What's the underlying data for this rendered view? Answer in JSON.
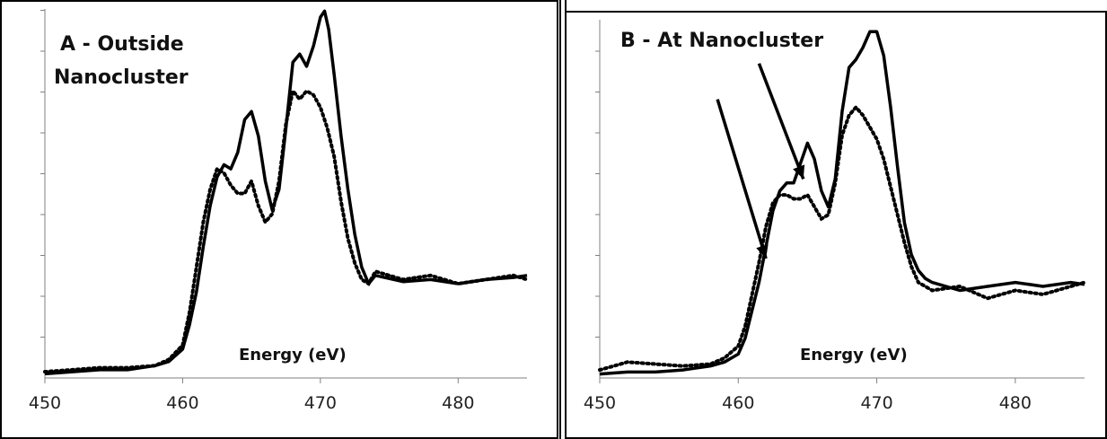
{
  "chart_data": [
    {
      "type": "line",
      "title_lines": [
        "A - Outside",
        "Nanocluster"
      ],
      "xlabel": "Energy (eV)",
      "ylabel": "",
      "xlim": [
        450,
        485
      ],
      "ylim": [
        0,
        9
      ],
      "xticks": [
        450,
        460,
        470,
        480
      ],
      "grid": false,
      "arrows": [],
      "series": [
        {
          "style": "solid",
          "x": [
            450,
            452,
            454,
            456,
            458,
            459,
            460,
            460.5,
            461,
            461.5,
            462,
            462.5,
            463,
            463.5,
            464,
            464.5,
            465,
            465.5,
            466,
            466.5,
            467,
            467.5,
            468,
            468.5,
            469,
            469.5,
            470,
            470.3,
            470.6,
            471,
            471.5,
            472,
            472.5,
            473,
            473.5,
            474,
            476,
            478,
            480,
            482,
            484,
            485
          ],
          "y": [
            0.1,
            0.15,
            0.2,
            0.2,
            0.3,
            0.4,
            0.7,
            1.3,
            2.1,
            3.2,
            4.2,
            4.9,
            5.2,
            5.1,
            5.5,
            6.3,
            6.5,
            5.9,
            4.8,
            4.1,
            4.6,
            6.1,
            7.7,
            7.9,
            7.6,
            8.1,
            8.8,
            8.95,
            8.5,
            7.4,
            5.9,
            4.6,
            3.5,
            2.7,
            2.3,
            2.5,
            2.35,
            2.4,
            2.3,
            2.4,
            2.45,
            2.5
          ]
        },
        {
          "style": "dotted",
          "x": [
            450,
            452,
            454,
            456,
            458,
            459,
            460,
            460.5,
            461,
            461.5,
            462,
            462.5,
            463,
            463.5,
            464,
            464.5,
            465,
            465.5,
            466,
            466.5,
            467,
            467.5,
            468,
            468.5,
            469,
            469.5,
            470,
            470.5,
            471,
            471.5,
            472,
            472.5,
            473,
            473.5,
            474,
            476,
            478,
            480,
            482,
            484,
            485
          ],
          "y": [
            0.15,
            0.2,
            0.25,
            0.25,
            0.3,
            0.45,
            0.8,
            1.6,
            2.7,
            3.8,
            4.6,
            5.1,
            5.0,
            4.7,
            4.5,
            4.5,
            4.8,
            4.2,
            3.8,
            4.0,
            4.8,
            6.2,
            7.0,
            6.8,
            7.0,
            6.9,
            6.6,
            6.1,
            5.4,
            4.3,
            3.4,
            2.8,
            2.4,
            2.3,
            2.6,
            2.4,
            2.5,
            2.3,
            2.4,
            2.5,
            2.4
          ]
        }
      ]
    },
    {
      "type": "line",
      "title_lines": [
        "B - At Nanocluster"
      ],
      "xlabel": "Energy (eV)",
      "ylabel": "",
      "xlim": [
        450,
        485
      ],
      "ylim": [
        0,
        9
      ],
      "xticks": [
        450,
        460,
        470,
        480
      ],
      "grid": false,
      "arrows": [
        {
          "from": [
            458.5,
            7.0
          ],
          "to": [
            462.0,
            3.0
          ]
        },
        {
          "from": [
            461.5,
            7.9
          ],
          "to": [
            464.7,
            5.0
          ]
        }
      ],
      "series": [
        {
          "style": "solid",
          "x": [
            450,
            452,
            454,
            456,
            458,
            459,
            460,
            460.5,
            461,
            461.5,
            462,
            462.5,
            463,
            463.5,
            464,
            464.5,
            465,
            465.5,
            466,
            466.5,
            467,
            467.5,
            468,
            468.5,
            469,
            469.5,
            470,
            470.5,
            471,
            471.5,
            472,
            472.5,
            473,
            473.5,
            474,
            476,
            478,
            480,
            482,
            484,
            485
          ],
          "y": [
            0.1,
            0.15,
            0.15,
            0.2,
            0.3,
            0.4,
            0.6,
            1.0,
            1.7,
            2.4,
            3.3,
            4.2,
            4.7,
            4.9,
            4.9,
            5.4,
            5.9,
            5.5,
            4.7,
            4.3,
            5.0,
            6.7,
            7.8,
            8.0,
            8.3,
            8.7,
            8.7,
            8.1,
            6.8,
            5.3,
            3.9,
            3.1,
            2.7,
            2.5,
            2.4,
            2.2,
            2.3,
            2.4,
            2.3,
            2.4,
            2.35
          ]
        },
        {
          "style": "dotted",
          "x": [
            450,
            452,
            454,
            456,
            458,
            459,
            460,
            460.5,
            461,
            461.5,
            462,
            462.5,
            463,
            463.5,
            464,
            464.5,
            465,
            465.5,
            466,
            466.5,
            467,
            467.5,
            468,
            468.5,
            469,
            469.5,
            470,
            470.5,
            471,
            471.5,
            472,
            472.5,
            473,
            473.5,
            474,
            476,
            478,
            480,
            482,
            484,
            485
          ],
          "y": [
            0.2,
            0.4,
            0.35,
            0.3,
            0.35,
            0.5,
            0.8,
            1.3,
            2.1,
            2.9,
            3.8,
            4.4,
            4.6,
            4.6,
            4.5,
            4.5,
            4.6,
            4.3,
            4.0,
            4.1,
            4.9,
            6.1,
            6.6,
            6.8,
            6.6,
            6.3,
            6.0,
            5.5,
            4.8,
            4.1,
            3.4,
            2.8,
            2.4,
            2.3,
            2.2,
            2.3,
            2.0,
            2.2,
            2.1,
            2.3,
            2.4
          ]
        }
      ]
    }
  ]
}
